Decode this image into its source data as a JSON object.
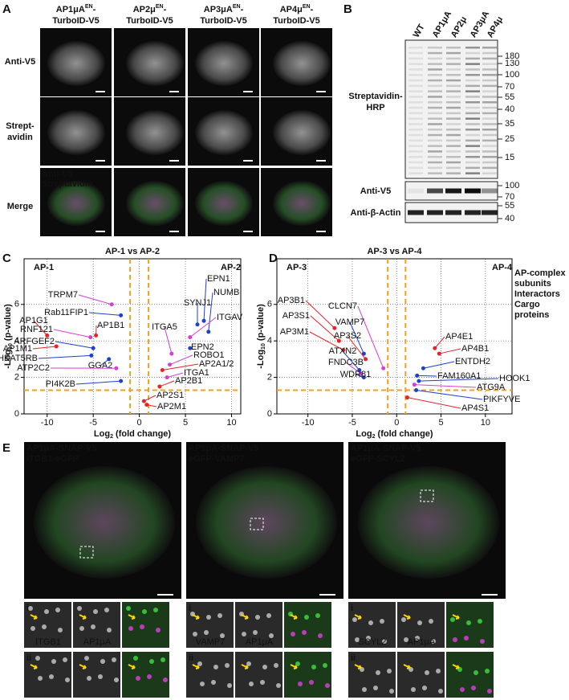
{
  "panel_a": {
    "letter": "A",
    "columns": [
      {
        "name": "AP1μA",
        "sup": "EN",
        "suffix": "-",
        "line2": "TurboID-V5"
      },
      {
        "name": "AP2μ",
        "sup": "EN",
        "suffix": "-",
        "line2": "TurboID-V5"
      },
      {
        "name": "AP3μA",
        "sup": "EN",
        "suffix": "-",
        "line2": "TurboID-V5"
      },
      {
        "name": "AP4μ",
        "sup": "EN",
        "suffix": "-",
        "line2": "TurboID-V5"
      }
    ],
    "row_labels": [
      [
        "Anti-V5"
      ],
      [
        "Strept-",
        "avidin"
      ],
      [
        "Merge"
      ]
    ],
    "merge_overlay": [
      {
        "text": "Anti-V5",
        "color": "#e040e0"
      },
      {
        "text": "Streptavidin",
        "color": "#30e030"
      }
    ]
  },
  "panel_b": {
    "letter": "B",
    "lanes": [
      "WT",
      "AP1μA",
      "AP2μ",
      "AP3μA",
      "AP4μ"
    ],
    "blots": [
      {
        "label": [
          "Streptavidin-",
          "HRP"
        ],
        "markers": [
          180,
          130,
          100,
          70,
          55,
          40,
          35,
          25,
          15
        ]
      },
      {
        "label": [
          "Anti-V5"
        ],
        "markers": [
          100,
          70
        ]
      },
      {
        "label": [
          "Anti-β-Actin"
        ],
        "markers": [
          55,
          40
        ]
      }
    ]
  },
  "legend": [
    {
      "name": [
        "AP-complex",
        "subunits"
      ],
      "color": "#e8212a"
    },
    {
      "name": [
        "Interactors"
      ],
      "color": "#1f3fcf"
    },
    {
      "name": [
        "Cargo",
        "proteins"
      ],
      "color": "#d43fd4"
    }
  ],
  "panel_c": {
    "letter": "C",
    "title": "AP-1 vs AP-2",
    "left_label": "AP-1",
    "right_label": "AP-2",
    "xlabel": {
      "pre": "Log",
      "sub": "2",
      "post": " (fold change)"
    },
    "ylabel": {
      "pre": "-Log",
      "sub": "10",
      "post": " (p-value)"
    },
    "xlim": [
      -12.5,
      11
    ],
    "ylim": [
      0,
      8.5
    ],
    "xticks": [
      -10,
      -5,
      0,
      5,
      10
    ],
    "yticks": [
      0,
      2,
      4,
      6
    ],
    "cutoff_x": [
      -1,
      1
    ],
    "cutoff_y": 1.3,
    "points": [
      {
        "label": "TRPM7",
        "x": -3,
        "y": 6,
        "color": "#d43fd4"
      },
      {
        "label": "Rab11FIP1",
        "x": -2,
        "y": 5.4,
        "color": "#1f3fcf"
      },
      {
        "label": "AP1G1",
        "x": -10,
        "y": 4.3,
        "color": "#e8212a"
      },
      {
        "label": "RNF121",
        "x": -5.3,
        "y": 4.2,
        "color": "#d43fd4"
      },
      {
        "label": "AP1B1",
        "x": -4.7,
        "y": 4.3,
        "color": "#e8212a"
      },
      {
        "label": "AP1M1",
        "x": -9,
        "y": 3.7,
        "color": "#e8212a"
      },
      {
        "label": "ARFGEF2",
        "x": -5,
        "y": 3.6,
        "color": "#1f3fcf"
      },
      {
        "label": "HEAT5RB",
        "x": -5.2,
        "y": 3.2,
        "color": "#1f3fcf"
      },
      {
        "label": "GGA2",
        "x": -3.3,
        "y": 3,
        "color": "#1f3fcf"
      },
      {
        "label": "ATP2C2",
        "x": -2.5,
        "y": 2.5,
        "color": "#d43fd4"
      },
      {
        "label": "PI4K2B",
        "x": -2,
        "y": 1.8,
        "color": "#1f3fcf"
      },
      {
        "label": "EPN1",
        "x": 7,
        "y": 5.1,
        "color": "#1f3fcf"
      },
      {
        "label": "NUMB",
        "x": 7.5,
        "y": 4.5,
        "color": "#1f3fcf"
      },
      {
        "label": "SYNJ1",
        "x": 6.3,
        "y": 4.9,
        "color": "#1f3fcf"
      },
      {
        "label": "ITGAV",
        "x": 5.5,
        "y": 4.2,
        "color": "#d43fd4"
      },
      {
        "label": "ITGA5",
        "x": 3.5,
        "y": 3.3,
        "color": "#d43fd4"
      },
      {
        "label": "EPN2",
        "x": 5.5,
        "y": 3.6,
        "color": "#1f3fcf"
      },
      {
        "label": "ROBO1",
        "x": 3.3,
        "y": 2.7,
        "color": "#d43fd4"
      },
      {
        "label": "AP2A1/2",
        "x": 2.5,
        "y": 2.4,
        "color": "#e8212a"
      },
      {
        "label": "ITGA1",
        "x": 3,
        "y": 2,
        "color": "#d43fd4"
      },
      {
        "label": "AP2B1",
        "x": 2.2,
        "y": 1.5,
        "color": "#e8212a"
      },
      {
        "label": "AP2S1",
        "x": 0.5,
        "y": 0.7,
        "color": "#e8212a"
      },
      {
        "label": "AP2M1",
        "x": 0.8,
        "y": 0.5,
        "color": "#e8212a"
      }
    ]
  },
  "panel_d": {
    "letter": "D",
    "title": "AP-3 vs AP-4",
    "left_label": "AP-3",
    "right_label": "AP-4",
    "xlabel": {
      "pre": "Log",
      "sub": "2",
      "post": " (fold change)"
    },
    "ylabel": {
      "pre": "-Log",
      "sub": "10",
      "post": " (p-value)"
    },
    "xlim": [
      -13.5,
      13
    ],
    "ylim": [
      0,
      8.5
    ],
    "xticks": [
      -10,
      -5,
      0,
      5,
      10
    ],
    "yticks": [
      0,
      2,
      4,
      6
    ],
    "cutoff_x": [
      -1,
      1
    ],
    "cutoff_y": 1.3,
    "points": [
      {
        "label": "AP3B1",
        "x": -7,
        "y": 4.7,
        "color": "#e8212a"
      },
      {
        "label": "AP3S1",
        "x": -6.5,
        "y": 4,
        "color": "#e8212a"
      },
      {
        "label": "AP3M1",
        "x": -6,
        "y": 3.5,
        "color": "#e8212a"
      },
      {
        "label": "CLCN7",
        "x": -1.5,
        "y": 2.5,
        "color": "#d43fd4"
      },
      {
        "label": "VAMP7",
        "x": -3.7,
        "y": 3.3,
        "color": "#1f3fcf"
      },
      {
        "label": "AP3S2",
        "x": -3.5,
        "y": 3,
        "color": "#e8212a"
      },
      {
        "label": "ATXN2",
        "x": -4.2,
        "y": 2.4,
        "color": "#1f3fcf"
      },
      {
        "label": "FNDC3B",
        "x": -4,
        "y": 2.2,
        "color": "#d43fd4"
      },
      {
        "label": "WDR81",
        "x": -3.7,
        "y": 2,
        "color": "#1f3fcf"
      },
      {
        "label": "AP4E1",
        "x": 4.3,
        "y": 3.6,
        "color": "#e8212a"
      },
      {
        "label": "AP4B1",
        "x": 4.8,
        "y": 3.3,
        "color": "#e8212a"
      },
      {
        "label": "ENTDH2",
        "x": 3,
        "y": 2.5,
        "color": "#1f3fcf"
      },
      {
        "label": "FAM160A1",
        "x": 2.3,
        "y": 2.1,
        "color": "#1f3fcf"
      },
      {
        "label": "HOOK1",
        "x": 2.5,
        "y": 1.8,
        "color": "#1f3fcf"
      },
      {
        "label": "ATG9A",
        "x": 2,
        "y": 1.6,
        "color": "#d43fd4"
      },
      {
        "label": "PIKFYVE",
        "x": 2.2,
        "y": 1.3,
        "color": "#1f3fcf"
      },
      {
        "label": "AP4S1",
        "x": 1.2,
        "y": 0.9,
        "color": "#e8212a"
      }
    ]
  },
  "panel_e": {
    "letter": "E",
    "inset_rows": [
      "i",
      "ii"
    ],
    "columns": [
      {
        "title": "AP1μA-SNAP-V5",
        "title2": "ITGB1-eGFP",
        "insets": [
          "ITGB1",
          "AP1μA"
        ]
      },
      {
        "title": "AP1μA-SNAP-V5",
        "title2": "eGFP-VAMP7",
        "insets": [
          "VAMP7",
          "AP1μA"
        ]
      },
      {
        "title": "AP1μA-SNAP-V5",
        "title2": "eGFP-SCYL2",
        "insets": [
          "SCYL2",
          "AP1μA"
        ]
      }
    ]
  }
}
